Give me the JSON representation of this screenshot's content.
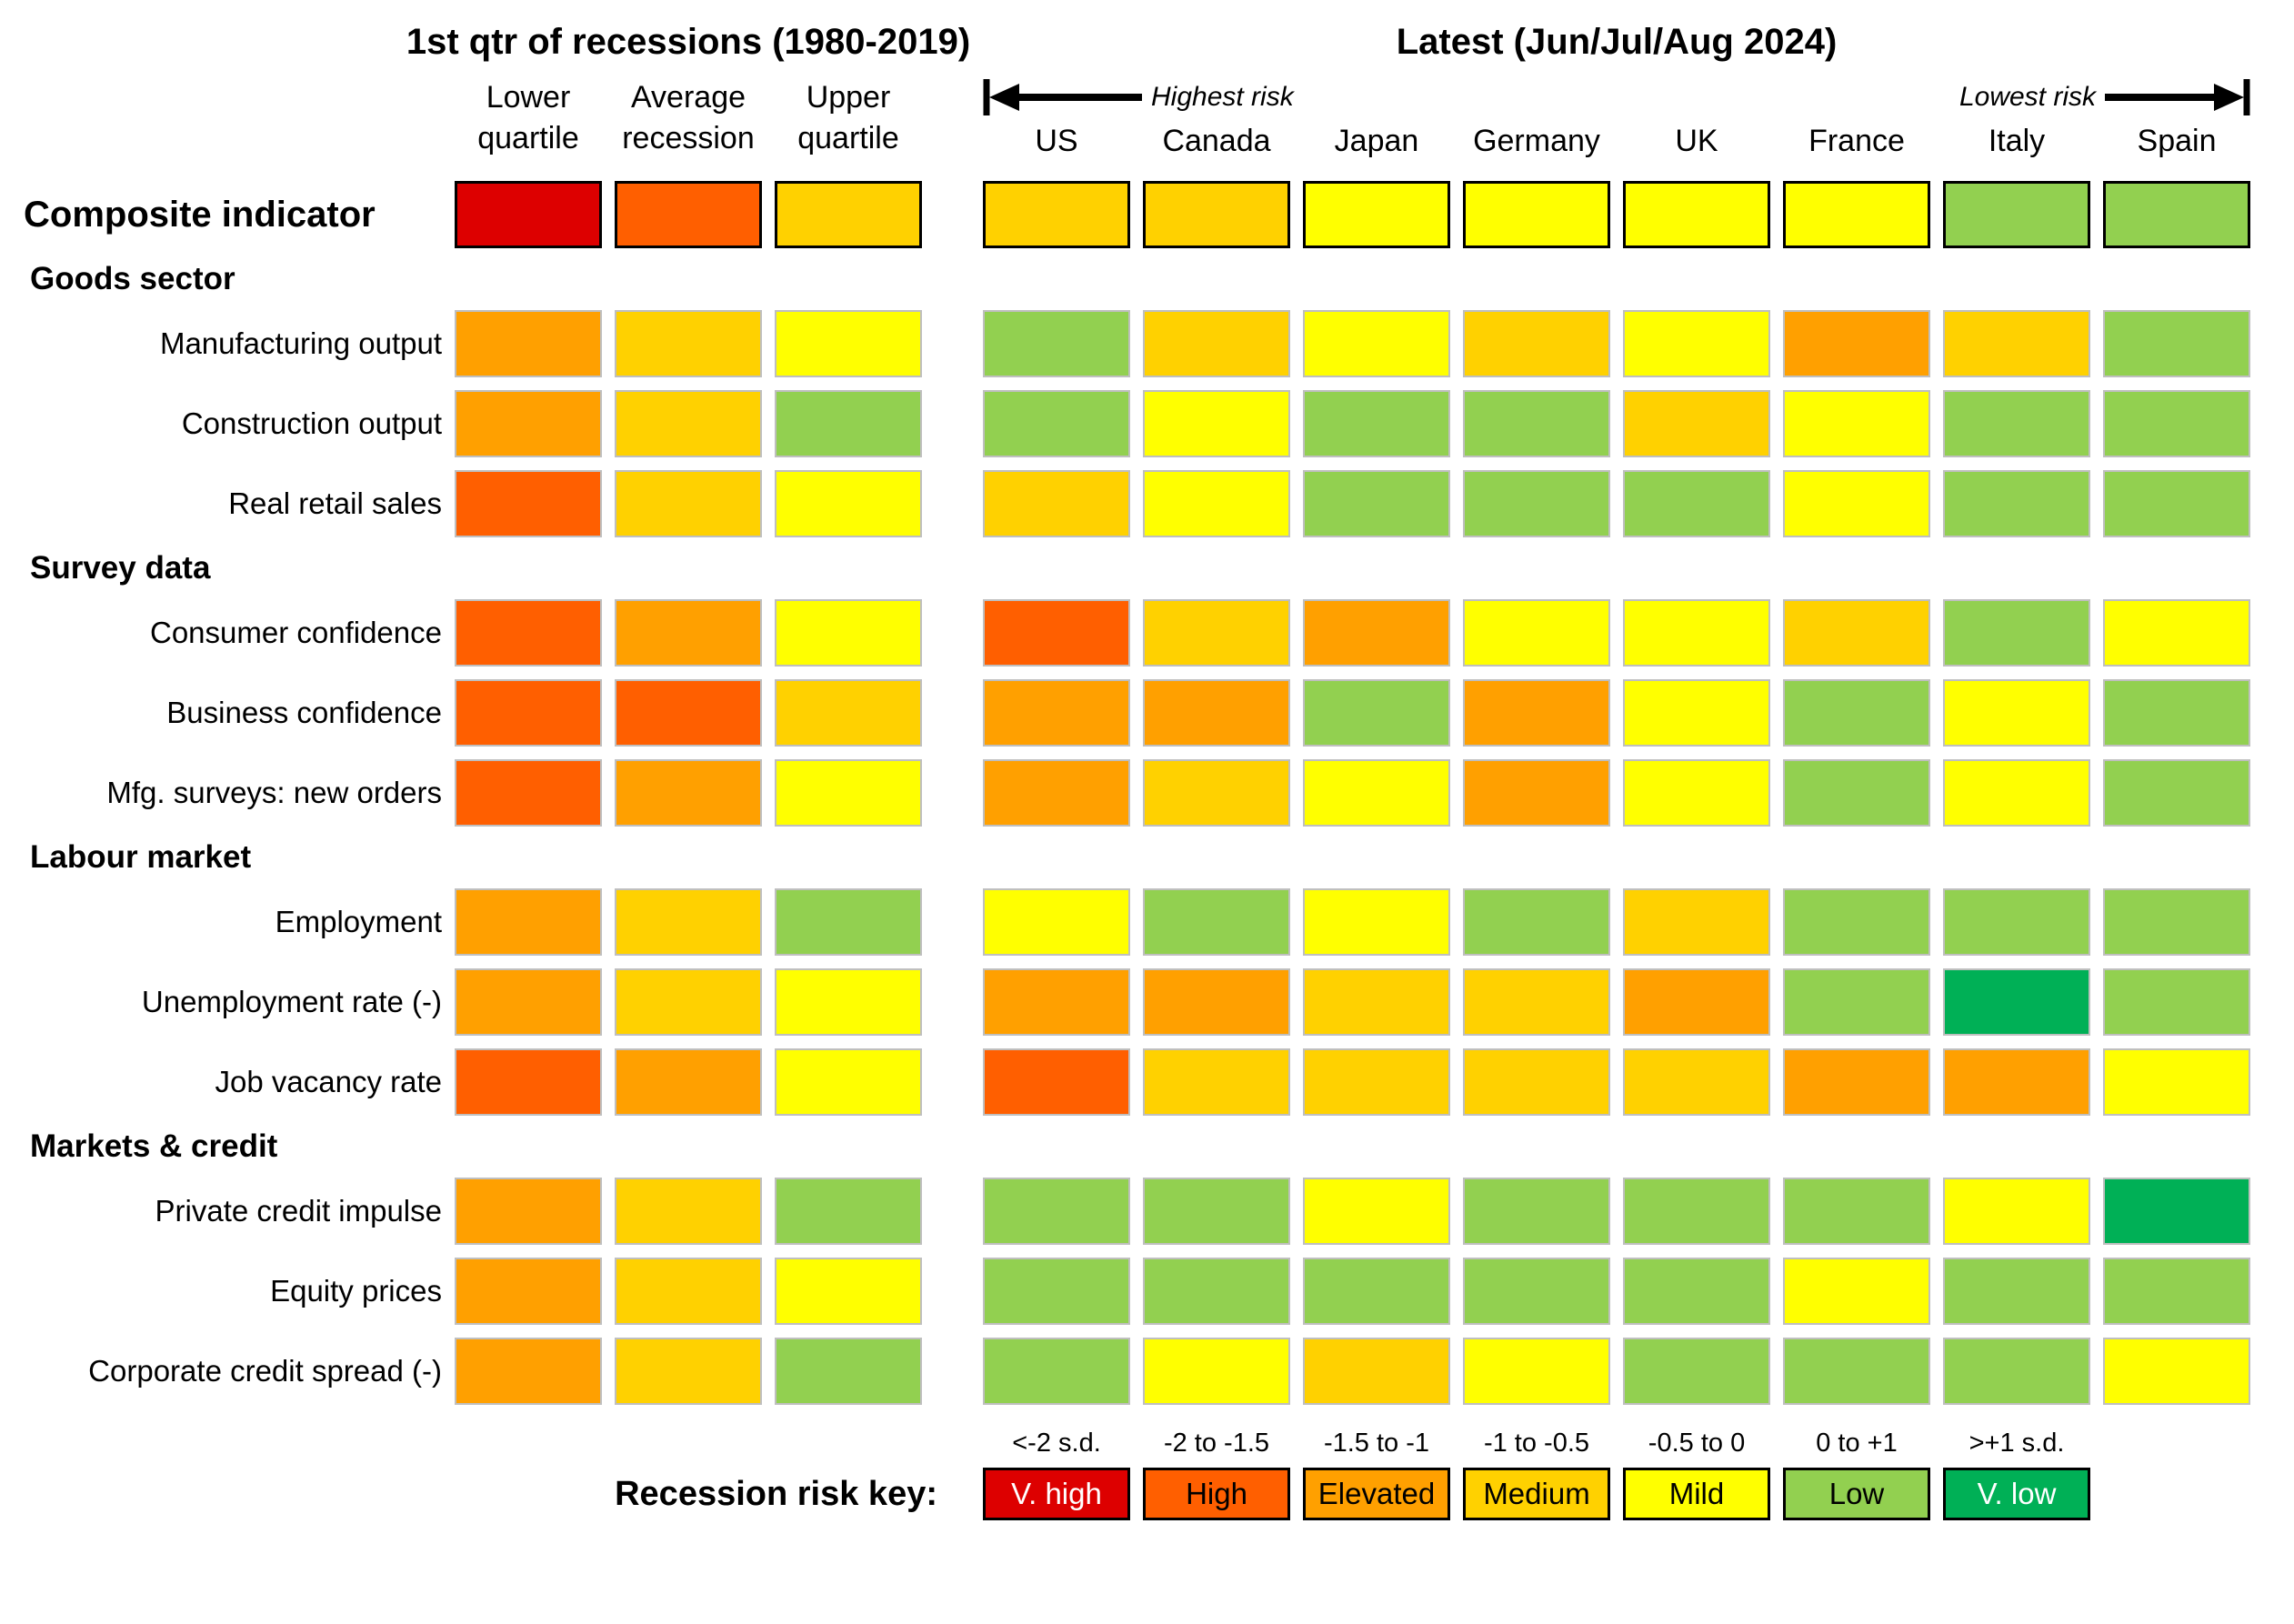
{
  "titles": {
    "left": "1st qtr of recessions (1980-2019)",
    "right": "Latest (Jun/Jul/Aug 2024)"
  },
  "annotations": {
    "highest_risk": "Highest risk",
    "lowest_risk": "Lowest risk"
  },
  "key": {
    "label": "Recession risk key:",
    "entries": [
      {
        "range": "<-2 s.d.",
        "label": "V. high",
        "color": "#dd0000",
        "text_color": "#ffffff"
      },
      {
        "range": "-2 to -1.5",
        "label": "High",
        "color": "#ff5f00",
        "text_color": "#000000"
      },
      {
        "range": "-1.5 to -1",
        "label": "Elevated",
        "color": "#ffa000",
        "text_color": "#000000"
      },
      {
        "range": "-1 to -0.5",
        "label": "Medium",
        "color": "#ffd100",
        "text_color": "#000000"
      },
      {
        "range": "-0.5 to 0",
        "label": "Mild",
        "color": "#ffff00",
        "text_color": "#000000"
      },
      {
        "range": "0 to +1",
        "label": "Low",
        "color": "#92d050",
        "text_color": "#000000"
      },
      {
        "range": ">+1 s.d.",
        "label": "V. low",
        "color": "#00b056",
        "text_color": "#ffffff"
      }
    ]
  },
  "colors": {
    "cell_border": "#bfbfbf",
    "emphasis_border": "#000000",
    "background": "#ffffff"
  },
  "chart_data": {
    "type": "heatmap",
    "legend_position": "bottom",
    "recession_columns": [
      "Lower quartile",
      "Average recession",
      "Upper quartile"
    ],
    "country_columns": [
      "US",
      "Canada",
      "Japan",
      "Germany",
      "UK",
      "France",
      "Italy",
      "Spain"
    ],
    "levels": [
      "V. high",
      "High",
      "Elevated",
      "Medium",
      "Mild",
      "Low",
      "V. low"
    ],
    "rows": [
      {
        "label": "Composite indicator",
        "style": "composite",
        "recession": [
          "V. high",
          "High",
          "Medium"
        ],
        "countries": [
          "Medium",
          "Medium",
          "Mild",
          "Mild",
          "Mild",
          "Mild",
          "Low",
          "Low"
        ]
      },
      {
        "section": "Goods sector"
      },
      {
        "label": "Manufacturing output",
        "recession": [
          "Elevated",
          "Medium",
          "Mild"
        ],
        "countries": [
          "Low",
          "Medium",
          "Mild",
          "Medium",
          "Mild",
          "Elevated",
          "Medium",
          "Low"
        ]
      },
      {
        "label": "Construction output",
        "recession": [
          "Elevated",
          "Medium",
          "Low"
        ],
        "countries": [
          "Low",
          "Mild",
          "Low",
          "Low",
          "Medium",
          "Mild",
          "Low",
          "Low"
        ]
      },
      {
        "label": "Real retail sales",
        "recession": [
          "High",
          "Medium",
          "Mild"
        ],
        "countries": [
          "Medium",
          "Mild",
          "Low",
          "Low",
          "Low",
          "Mild",
          "Low",
          "Low"
        ]
      },
      {
        "section": "Survey data"
      },
      {
        "label": "Consumer confidence",
        "recession": [
          "High",
          "Elevated",
          "Mild"
        ],
        "countries": [
          "High",
          "Medium",
          "Elevated",
          "Mild",
          "Mild",
          "Medium",
          "Low",
          "Mild"
        ]
      },
      {
        "label": "Business confidence",
        "recession": [
          "High",
          "High",
          "Medium"
        ],
        "countries": [
          "Elevated",
          "Elevated",
          "Low",
          "Elevated",
          "Mild",
          "Low",
          "Mild",
          "Low"
        ]
      },
      {
        "label": "Mfg. surveys: new orders",
        "recession": [
          "High",
          "Elevated",
          "Mild"
        ],
        "countries": [
          "Elevated",
          "Medium",
          "Mild",
          "Elevated",
          "Mild",
          "Low",
          "Mild",
          "Low"
        ]
      },
      {
        "section": "Labour market"
      },
      {
        "label": "Employment",
        "recession": [
          "Elevated",
          "Medium",
          "Low"
        ],
        "countries": [
          "Mild",
          "Low",
          "Mild",
          "Low",
          "Medium",
          "Low",
          "Low",
          "Low"
        ]
      },
      {
        "label": "Unemployment rate (-)",
        "recession": [
          "Elevated",
          "Medium",
          "Mild"
        ],
        "countries": [
          "Elevated",
          "Elevated",
          "Medium",
          "Medium",
          "Elevated",
          "Low",
          "V. low",
          "Low"
        ]
      },
      {
        "label": "Job vacancy rate",
        "recession": [
          "High",
          "Elevated",
          "Mild"
        ],
        "countries": [
          "High",
          "Medium",
          "Medium",
          "Medium",
          "Medium",
          "Elevated",
          "Elevated",
          "Mild"
        ]
      },
      {
        "section": "Markets & credit"
      },
      {
        "label": "Private credit impulse",
        "recession": [
          "Elevated",
          "Medium",
          "Low"
        ],
        "countries": [
          "Low",
          "Low",
          "Mild",
          "Low",
          "Low",
          "Low",
          "Mild",
          "V. low"
        ]
      },
      {
        "label": "Equity prices",
        "recession": [
          "Elevated",
          "Medium",
          "Mild"
        ],
        "countries": [
          "Low",
          "Low",
          "Low",
          "Low",
          "Low",
          "Mild",
          "Low",
          "Low"
        ]
      },
      {
        "label": "Corporate credit spread (-)",
        "recession": [
          "Elevated",
          "Medium",
          "Low"
        ],
        "countries": [
          "Low",
          "Mild",
          "Medium",
          "Mild",
          "Low",
          "Low",
          "Low",
          "Mild"
        ]
      }
    ]
  }
}
